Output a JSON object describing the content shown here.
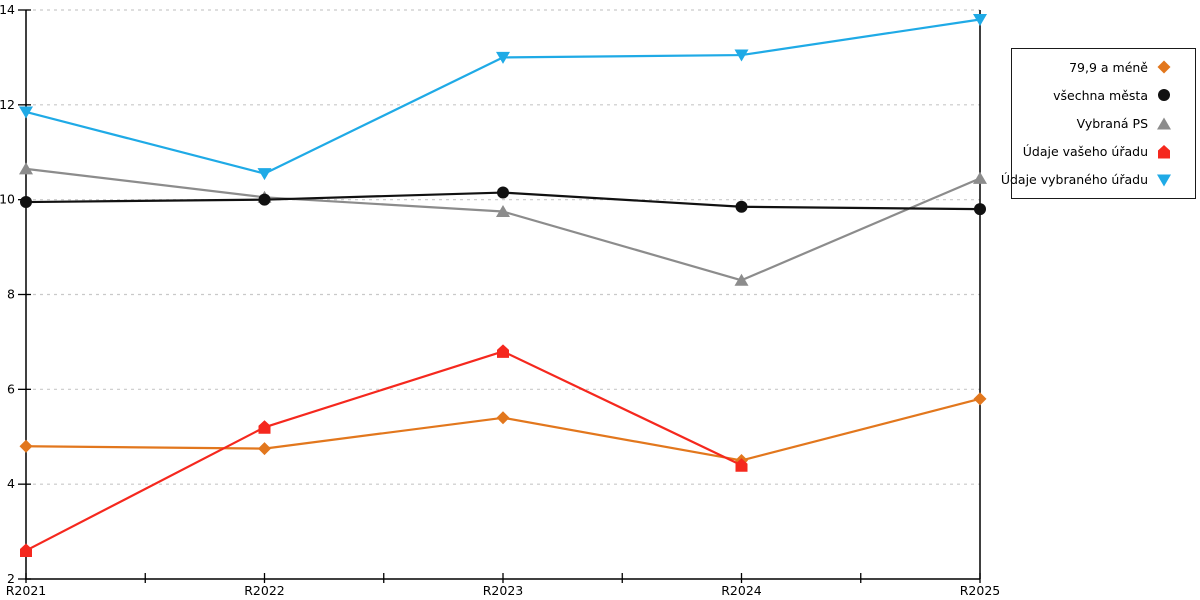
{
  "chart_data": {
    "type": "line",
    "title": "",
    "xlabel": "",
    "ylabel": "",
    "categories": [
      "R2021",
      "R2022",
      "R2023",
      "R2024",
      "R2025"
    ],
    "y_ticks": [
      2,
      4,
      6,
      8,
      10,
      12,
      14
    ],
    "ylim": [
      2,
      14
    ],
    "grid": "horizontal dashed light-gray",
    "legend_position": "outside-right",
    "axis_color": "#000000",
    "gridline_color": "#c9c9c9",
    "series": [
      {
        "name": "79,9 a méně",
        "marker": "diamond",
        "color": "#e2771d",
        "values": [
          4.8,
          4.75,
          5.4,
          4.5,
          5.8
        ]
      },
      {
        "name": "všechna města",
        "marker": "circle",
        "color": "#111111",
        "values": [
          9.95,
          10.0,
          10.15,
          9.85,
          9.8
        ]
      },
      {
        "name": "Vybraná PS",
        "marker": "triangle-up",
        "color": "#8c8c8c",
        "values": [
          10.65,
          10.05,
          9.75,
          8.3,
          10.45
        ]
      },
      {
        "name": "Údaje vašeho úřadu",
        "marker": "pentagon",
        "color": "#f5281e",
        "values": [
          2.6,
          5.2,
          6.8,
          4.4,
          null
        ]
      },
      {
        "name": "Údaje vybraného úřadu",
        "marker": "triangle-down",
        "color": "#1faae6",
        "values": [
          11.85,
          10.55,
          13.0,
          13.05,
          13.8
        ]
      }
    ],
    "draw_order": [
      2,
      1,
      0,
      3,
      4
    ]
  }
}
